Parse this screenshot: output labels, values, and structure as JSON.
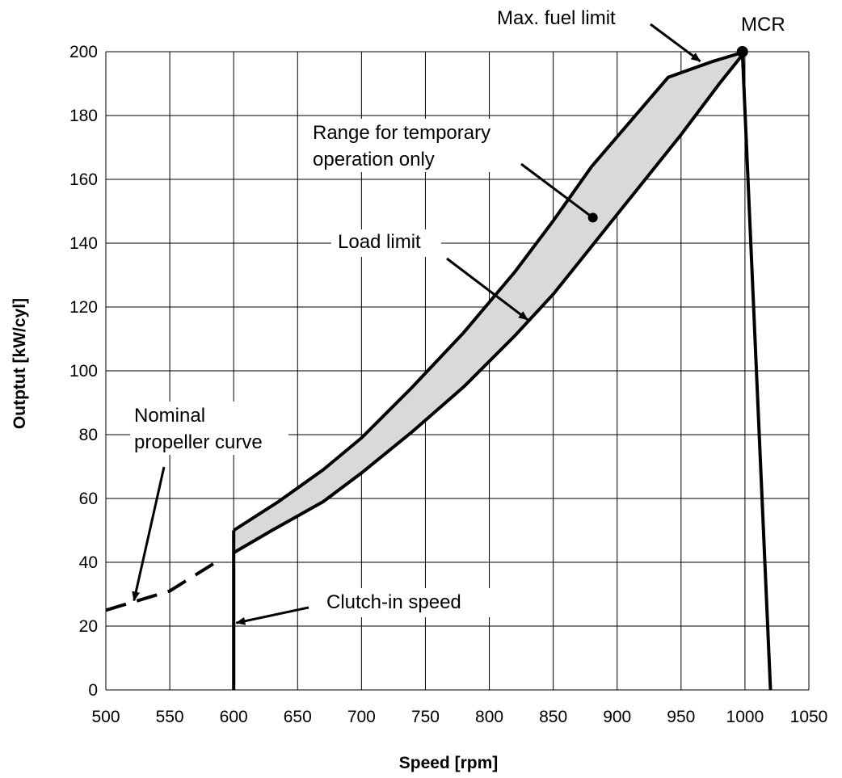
{
  "chart_data": {
    "type": "line",
    "xlabel": "Speed [rpm]",
    "ylabel": "Outptut [kW/cyl]",
    "xlim": [
      500,
      1050
    ],
    "ylim": [
      0,
      200
    ],
    "x_ticks": [
      500,
      550,
      600,
      650,
      700,
      750,
      800,
      850,
      900,
      950,
      1000,
      1050
    ],
    "y_ticks": [
      0,
      20,
      40,
      60,
      80,
      100,
      120,
      140,
      160,
      180,
      200
    ],
    "x_tick_labels": [
      "500",
      "550",
      "600",
      "650",
      "700",
      "750",
      "800",
      "850",
      "900",
      "950",
      "1000",
      "1050"
    ],
    "y_tick_labels": [
      "0",
      "20",
      "40",
      "60",
      "80",
      "100",
      "120",
      "140",
      "160",
      "180",
      "200"
    ],
    "grid": true,
    "colors": {
      "region_fill": "#d9d9d9",
      "line": "#000000"
    },
    "series": [
      {
        "key": "nominal_propeller",
        "style": "dashed",
        "points": [
          [
            500,
            25
          ],
          [
            550,
            31
          ],
          [
            590,
            41
          ]
        ]
      },
      {
        "key": "max_fuel_upper",
        "style": "solid",
        "points": [
          [
            600,
            50
          ],
          [
            635,
            59
          ],
          [
            670,
            69
          ],
          [
            700,
            79
          ],
          [
            740,
            95
          ],
          [
            780,
            112
          ],
          [
            820,
            131
          ],
          [
            850,
            147
          ],
          [
            880,
            164
          ],
          [
            910,
            178
          ],
          [
            940,
            192
          ],
          [
            975,
            197
          ],
          [
            1000,
            200
          ]
        ]
      },
      {
        "key": "load_limit",
        "style": "solid",
        "points": [
          [
            600,
            43
          ],
          [
            630,
            50
          ],
          [
            670,
            59
          ],
          [
            700,
            68
          ],
          [
            740,
            81
          ],
          [
            780,
            95
          ],
          [
            820,
            111
          ],
          [
            850,
            124
          ],
          [
            880,
            139
          ],
          [
            910,
            154
          ],
          [
            950,
            174
          ],
          [
            980,
            190
          ],
          [
            1000,
            200
          ]
        ]
      },
      {
        "key": "clutch_in_vertical",
        "style": "solid",
        "points": [
          [
            600,
            0
          ],
          [
            600,
            50
          ]
        ]
      },
      {
        "key": "overspeed",
        "style": "solid",
        "points": [
          [
            998,
            200
          ],
          [
            1020,
            0
          ]
        ]
      }
    ],
    "markers": [
      {
        "key": "mcr",
        "point": [
          998,
          200
        ]
      },
      {
        "key": "temporary_region_dot",
        "point": [
          881,
          148
        ]
      }
    ],
    "annotations": {
      "max_fuel_limit": {
        "text": "Max. fuel limit",
        "arrow_to": [
          965,
          197
        ]
      },
      "mcr": {
        "text": "MCR"
      },
      "temporary_line1": {
        "text": "Range for temporary"
      },
      "temporary_line2": {
        "text": "operation only"
      },
      "load_limit": {
        "text": "Load limit",
        "arrow_to": [
          830,
          116
        ]
      },
      "nominal_line1": {
        "text": "Nominal"
      },
      "nominal_line2": {
        "text": "propeller curve",
        "arrow_to": [
          522,
          28
        ]
      },
      "clutch_in": {
        "text": "Clutch-in speed",
        "arrow_to": [
          602,
          21
        ]
      }
    }
  }
}
